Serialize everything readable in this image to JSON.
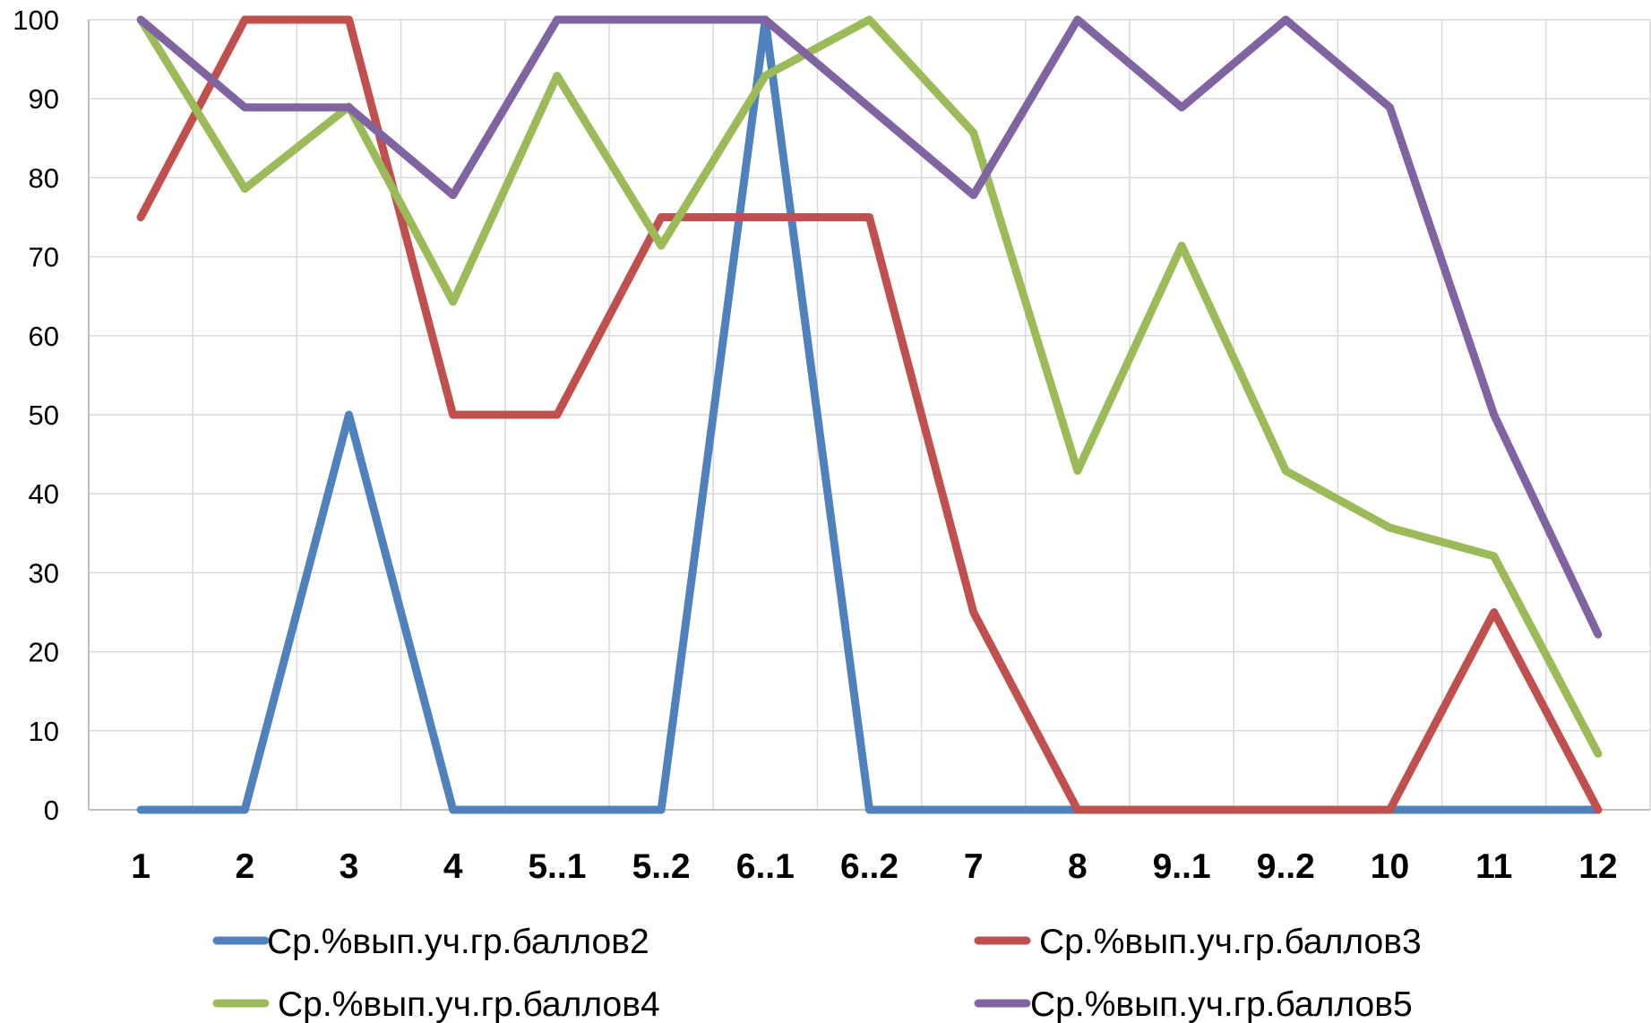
{
  "chart_data": {
    "type": "line",
    "title": "",
    "xlabel": "",
    "ylabel": "",
    "categories": [
      "1",
      "2",
      "3",
      "4",
      "5..1",
      "5..2",
      "6..1",
      "6..2",
      "7",
      "8",
      "9..1",
      "9..2",
      "10",
      "11",
      "12"
    ],
    "ylim": [
      0,
      100
    ],
    "yticks": [
      0,
      10,
      20,
      30,
      40,
      50,
      60,
      70,
      80,
      90,
      100
    ],
    "grid": true,
    "legend_position": "bottom",
    "series": [
      {
        "name": "Ср.%вып.уч.гр.баллов2",
        "color": "#4F81BD",
        "values": [
          0,
          0,
          50,
          0,
          0,
          0,
          100,
          0,
          0,
          0,
          0,
          0,
          0,
          0,
          0
        ]
      },
      {
        "name": "Ср.%вып.уч.гр.баллов3",
        "color": "#C0504D",
        "values": [
          75,
          100,
          100,
          50,
          50,
          75,
          75,
          75,
          25,
          0,
          0,
          0,
          0,
          25,
          0
        ]
      },
      {
        "name": "Ср.%вып.уч.гр.баллов4",
        "color": "#9BBB59",
        "values": [
          100,
          78.6,
          89,
          64.3,
          92.9,
          71.4,
          92.9,
          100,
          85.7,
          42.9,
          71.4,
          42.9,
          35.7,
          32.1,
          7.1
        ]
      },
      {
        "name": "Ср.%вып.уч.гр.баллов5",
        "color": "#8064A2",
        "values": [
          100,
          88.9,
          88.9,
          77.8,
          100,
          100,
          100,
          88.9,
          77.8,
          100,
          88.9,
          100,
          88.9,
          50,
          22.2
        ]
      }
    ]
  }
}
